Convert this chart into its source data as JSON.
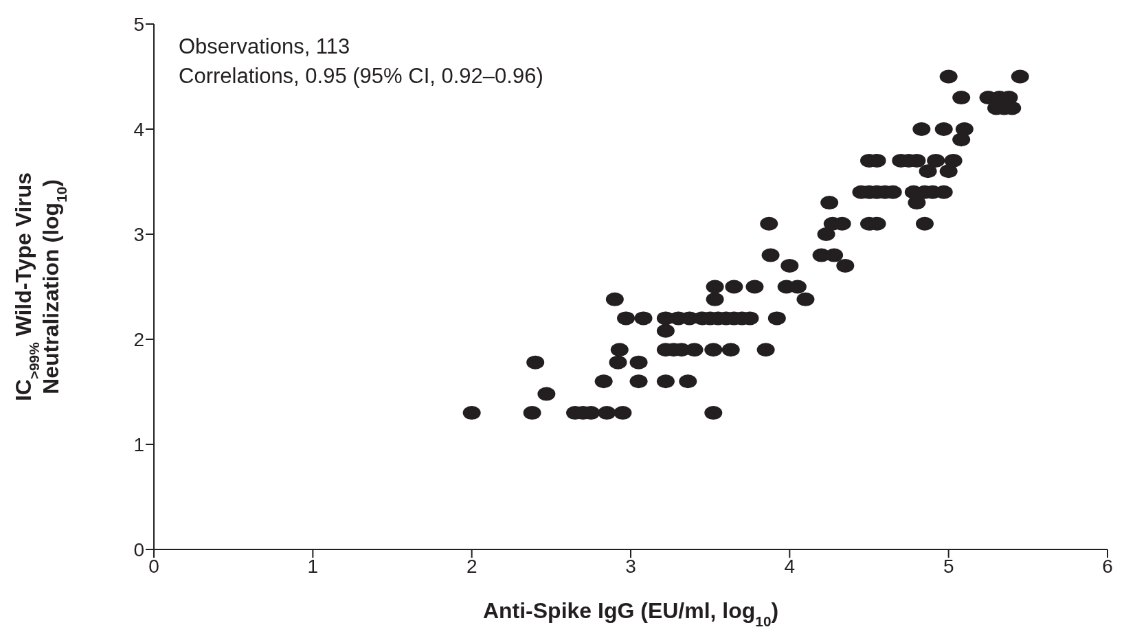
{
  "chart_data": {
    "type": "scatter",
    "xlabel": "Anti-Spike IgG (EU/ml, log$_{10}$)",
    "ylabel": "IC$_{>99%}$ Wild-Type Virus Neutralization (log$_{10}$)",
    "annotations": [
      "Observations, 113",
      "Correlations, 0.95 (95% CI, 0.92–0.96)"
    ],
    "xlim": [
      0,
      6
    ],
    "xticks": [
      0,
      1,
      2,
      3,
      4,
      5,
      6
    ],
    "ylim": [
      0,
      5
    ],
    "yticks": [
      0,
      1,
      2,
      3,
      4,
      5
    ],
    "grid": false,
    "legend": false,
    "marker": "circle",
    "series": [
      {
        "color": "#231f20",
        "x": [
          2.0,
          2.38,
          2.65,
          2.7,
          2.75,
          2.85,
          2.95,
          3.52,
          2.47,
          2.83,
          3.05,
          3.22,
          3.36,
          2.4,
          2.92,
          3.05,
          2.93,
          3.22,
          3.27,
          3.32,
          3.4,
          3.52,
          3.63,
          3.85,
          3.22,
          2.97,
          3.08,
          3.22,
          3.3,
          3.37,
          3.45,
          3.5,
          3.55,
          3.6,
          3.65,
          3.7,
          3.75,
          3.92,
          2.9,
          3.53,
          4.1,
          3.53,
          3.65,
          3.78,
          3.98,
          4.05,
          4.0,
          4.35,
          3.88,
          4.2,
          4.28,
          4.23,
          3.87,
          4.27,
          4.33,
          4.5,
          4.55,
          4.85,
          4.25,
          4.8,
          4.45,
          4.5,
          4.55,
          4.6,
          4.65,
          4.78,
          4.85,
          4.9,
          4.97,
          4.87,
          5.0,
          4.5,
          4.55,
          4.7,
          4.75,
          4.8,
          4.92,
          5.03,
          5.08,
          4.83,
          4.97,
          5.1,
          5.3,
          5.35,
          5.4,
          5.08,
          5.25,
          5.32,
          5.38,
          5.0,
          5.45
        ],
        "values": [
          1.3,
          1.3,
          1.3,
          1.3,
          1.3,
          1.3,
          1.3,
          1.3,
          1.48,
          1.6,
          1.6,
          1.6,
          1.6,
          1.78,
          1.78,
          1.78,
          1.9,
          1.9,
          1.9,
          1.9,
          1.9,
          1.9,
          1.9,
          1.9,
          2.08,
          2.2,
          2.2,
          2.2,
          2.2,
          2.2,
          2.2,
          2.2,
          2.2,
          2.2,
          2.2,
          2.2,
          2.2,
          2.2,
          2.38,
          2.38,
          2.38,
          2.5,
          2.5,
          2.5,
          2.5,
          2.5,
          2.7,
          2.7,
          2.8,
          2.8,
          2.8,
          3.0,
          3.1,
          3.1,
          3.1,
          3.1,
          3.1,
          3.1,
          3.3,
          3.3,
          3.4,
          3.4,
          3.4,
          3.4,
          3.4,
          3.4,
          3.4,
          3.4,
          3.4,
          3.6,
          3.6,
          3.7,
          3.7,
          3.7,
          3.7,
          3.7,
          3.7,
          3.7,
          3.9,
          4.0,
          4.0,
          4.0,
          4.2,
          4.2,
          4.2,
          4.3,
          4.3,
          4.3,
          4.3,
          4.5,
          4.5
        ]
      }
    ]
  }
}
